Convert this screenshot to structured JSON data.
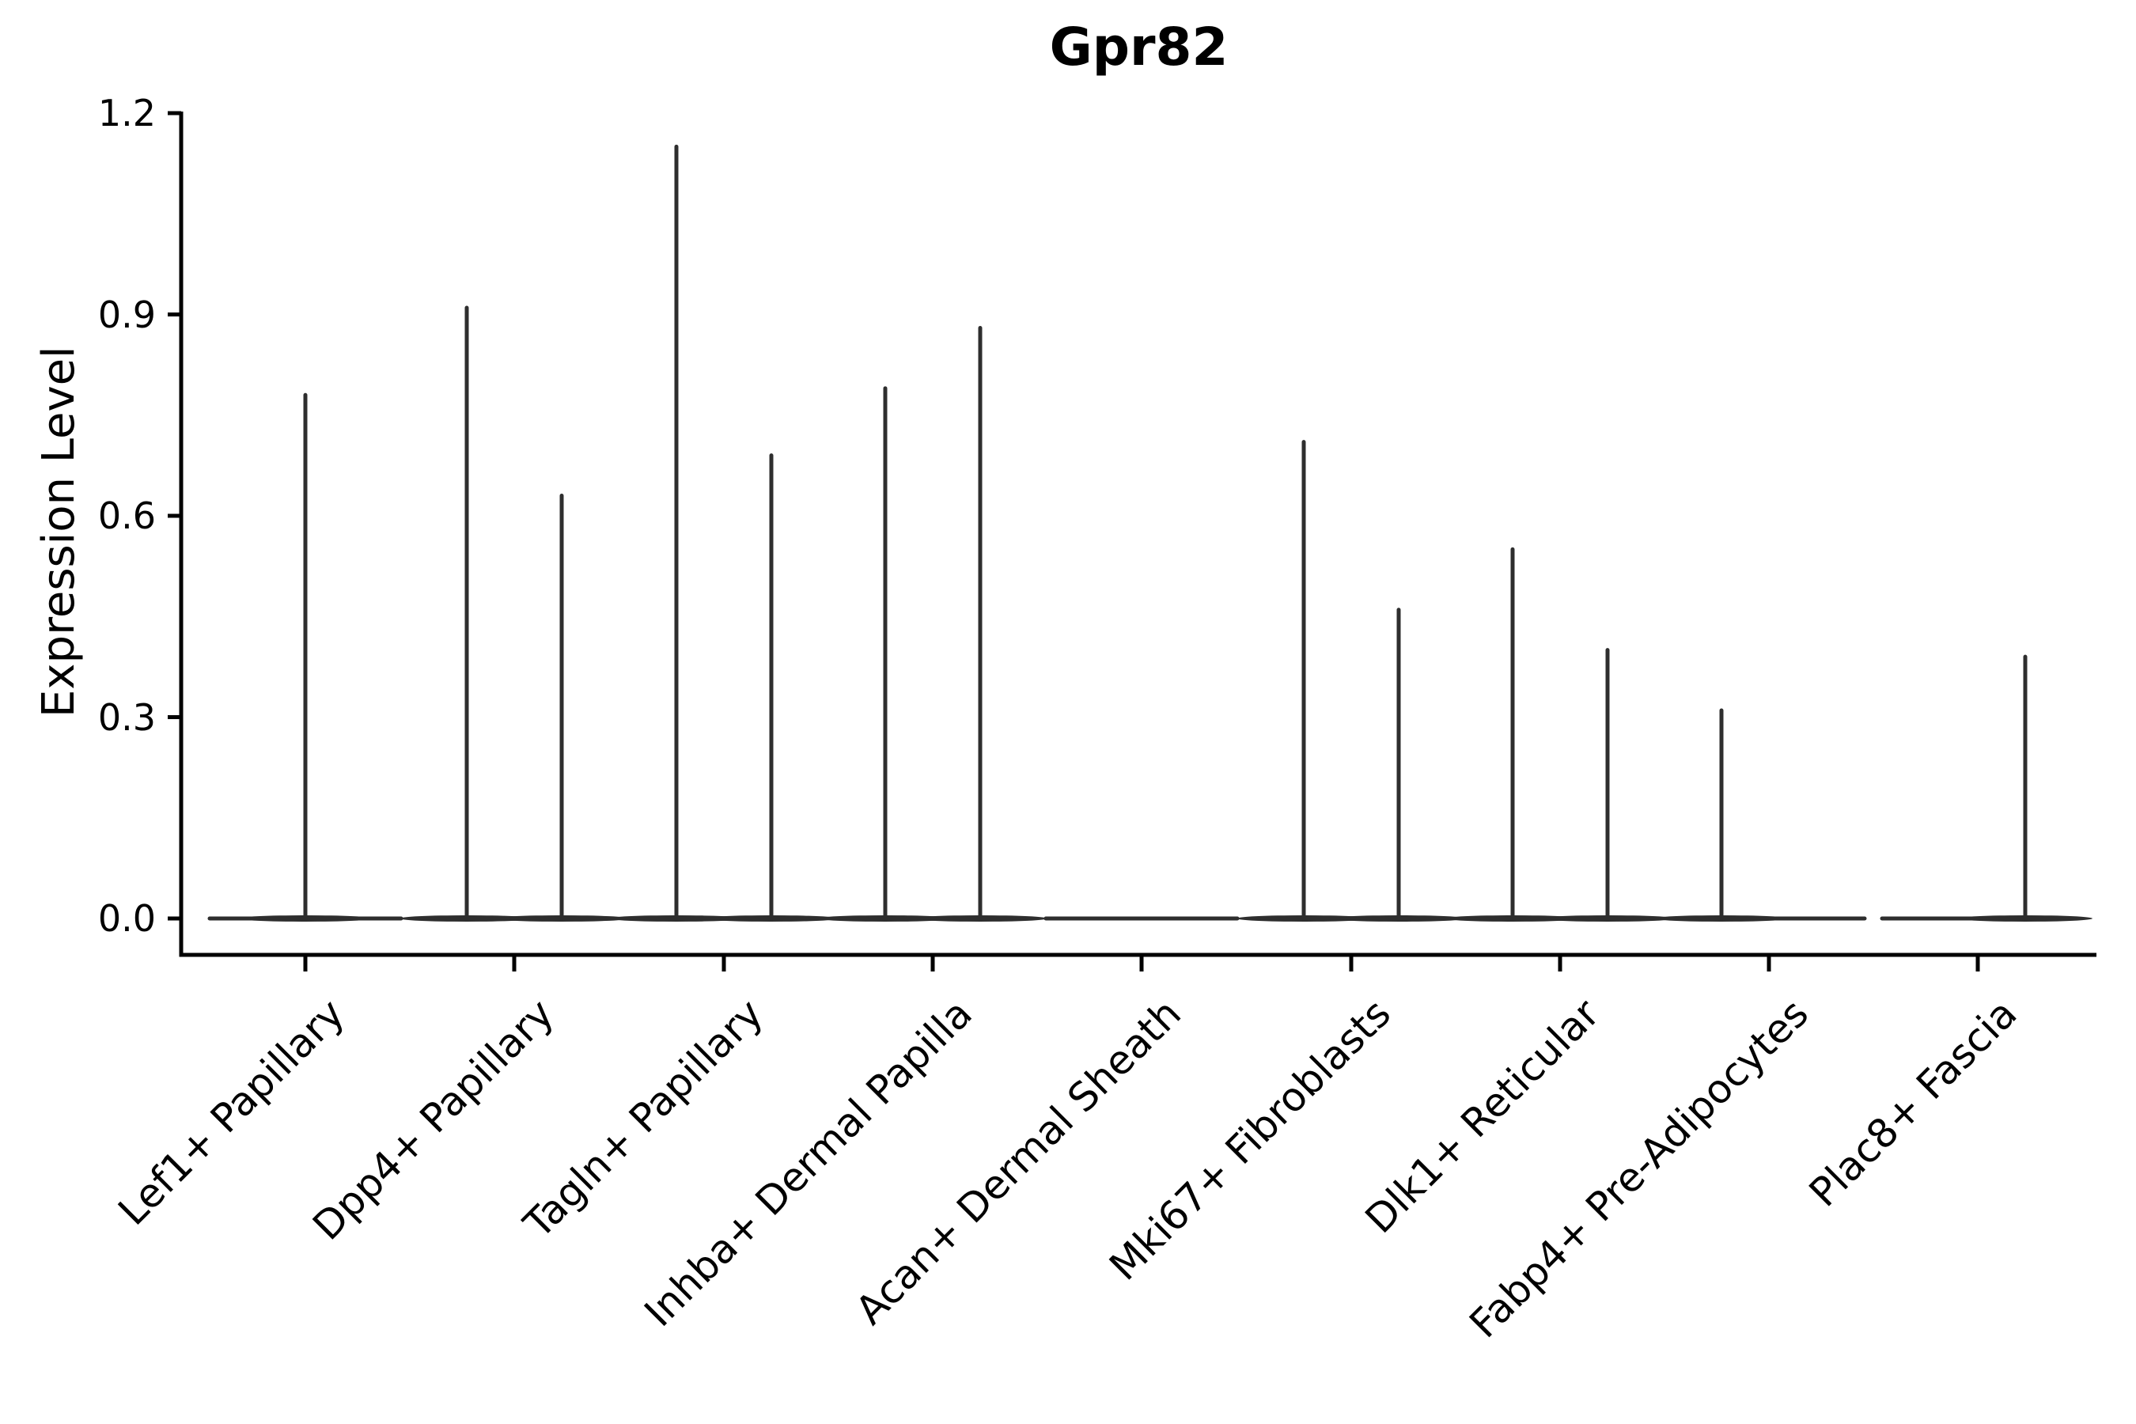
{
  "chart_data": {
    "type": "violin",
    "title": "Gpr82",
    "ylabel": "Expression Level",
    "xlabel": "",
    "ylim": [
      0,
      1.2
    ],
    "grid": false,
    "legend": false,
    "yticks": [
      {
        "label": "0.0",
        "value": 0.0
      },
      {
        "label": "0.3",
        "value": 0.3
      },
      {
        "label": "0.6",
        "value": 0.6
      },
      {
        "label": "0.9",
        "value": 0.9
      },
      {
        "label": "1.2",
        "value": 1.2
      }
    ],
    "categories": [
      {
        "label": "Lef1+ Papillary",
        "violins": [
          {
            "position": "center",
            "max_expression": 0.78
          }
        ]
      },
      {
        "label": "Dpp4+ Papillary",
        "violins": [
          {
            "position": "left",
            "max_expression": 0.91
          },
          {
            "position": "right",
            "max_expression": 0.63
          }
        ]
      },
      {
        "label": "Tagln+ Papillary",
        "violins": [
          {
            "position": "left",
            "max_expression": 1.15
          },
          {
            "position": "right",
            "max_expression": 0.69
          }
        ]
      },
      {
        "label": "Inhba+ Dermal Papilla",
        "violins": [
          {
            "position": "left",
            "max_expression": 0.79
          },
          {
            "position": "right",
            "max_expression": 0.88
          }
        ]
      },
      {
        "label": "Acan+ Dermal Sheath",
        "violins": []
      },
      {
        "label": "Mki67+ Fibroblasts",
        "violins": [
          {
            "position": "left",
            "max_expression": 0.71
          },
          {
            "position": "right",
            "max_expression": 0.46
          }
        ]
      },
      {
        "label": "Dlk1+ Reticular",
        "violins": [
          {
            "position": "left",
            "max_expression": 0.55
          },
          {
            "position": "right",
            "max_expression": 0.4
          }
        ]
      },
      {
        "label": "Fabp4+ Pre-Adipocytes",
        "violins": [
          {
            "position": "left",
            "max_expression": 0.31
          }
        ]
      },
      {
        "label": "Plac8+ Fascia",
        "violins": [
          {
            "position": "right",
            "max_expression": 0.39
          }
        ]
      }
    ],
    "colors": {
      "violin": "#2e2e2e",
      "axis": "#000000",
      "text": "#000000",
      "background": "#ffffff"
    }
  }
}
